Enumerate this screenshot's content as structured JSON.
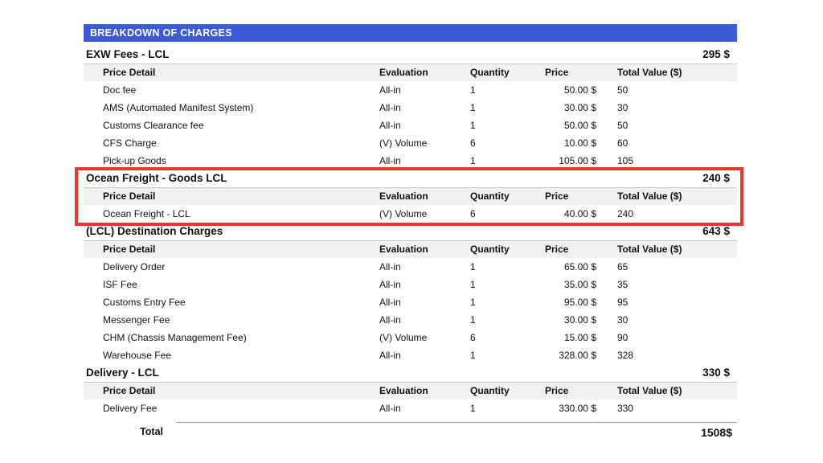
{
  "title_bar": {
    "label": "BREAKDOWN OF CHARGES"
  },
  "colors": {
    "accent_blue": "#3d5bd6",
    "highlight_red": "#e0392e",
    "header_gray": "#f1f1f2",
    "border_gray": "#c9c9c9"
  },
  "columns": {
    "detail": "Price Detail",
    "evaluation": "Evaluation",
    "quantity": "Quantity",
    "price": "Price",
    "total": "Total Value ($)"
  },
  "sections": [
    {
      "title": "EXW Fees - LCL",
      "amount": "295 $",
      "highlighted": false,
      "rows": [
        {
          "detail": "Doc fee",
          "evaluation": "All-in",
          "quantity": "1",
          "price": "50.00 $",
          "total": "50"
        },
        {
          "detail": "AMS (Automated Manifest System)",
          "evaluation": "All-in",
          "quantity": "1",
          "price": "30.00 $",
          "total": "30"
        },
        {
          "detail": "Customs Clearance fee",
          "evaluation": "All-in",
          "quantity": "1",
          "price": "50.00 $",
          "total": "50"
        },
        {
          "detail": "CFS Charge",
          "evaluation": "(V) Volume",
          "quantity": "6",
          "price": "10.00 $",
          "total": "60"
        },
        {
          "detail": "Pick-up Goods",
          "evaluation": "All-in",
          "quantity": "1",
          "price": "105.00 $",
          "total": "105"
        }
      ]
    },
    {
      "title": "Ocean Freight - Goods LCL",
      "amount": "240 $",
      "highlighted": true,
      "rows": [
        {
          "detail": "Ocean Freight - LCL",
          "evaluation": "(V) Volume",
          "quantity": "6",
          "price": "40.00 $",
          "total": "240"
        }
      ]
    },
    {
      "title": "(LCL) Destination Charges",
      "amount": "643 $",
      "highlighted": false,
      "rows": [
        {
          "detail": "Delivery Order",
          "evaluation": "All-in",
          "quantity": "1",
          "price": "65.00 $",
          "total": "65"
        },
        {
          "detail": "ISF Fee",
          "evaluation": "All-in",
          "quantity": "1",
          "price": "35.00 $",
          "total": "35"
        },
        {
          "detail": "Customs Entry Fee",
          "evaluation": "All-in",
          "quantity": "1",
          "price": "95.00 $",
          "total": "95"
        },
        {
          "detail": "Messenger Fee",
          "evaluation": "All-in",
          "quantity": "1",
          "price": "30.00 $",
          "total": "30"
        },
        {
          "detail": "CHM (Chassis Management Fee)",
          "evaluation": "(V) Volume",
          "quantity": "6",
          "price": "15.00 $",
          "total": "90"
        },
        {
          "detail": "Warehouse Fee",
          "evaluation": "All-in",
          "quantity": "1",
          "price": "328.00 $",
          "total": "328"
        }
      ]
    },
    {
      "title": "Delivery - LCL",
      "amount": "330 $",
      "highlighted": false,
      "rows": [
        {
          "detail": "Delivery Fee",
          "evaluation": "All-in",
          "quantity": "1",
          "price": "330.00 $",
          "total": "330"
        }
      ]
    }
  ],
  "footer": {
    "label": "Total",
    "amount": "1508$"
  }
}
